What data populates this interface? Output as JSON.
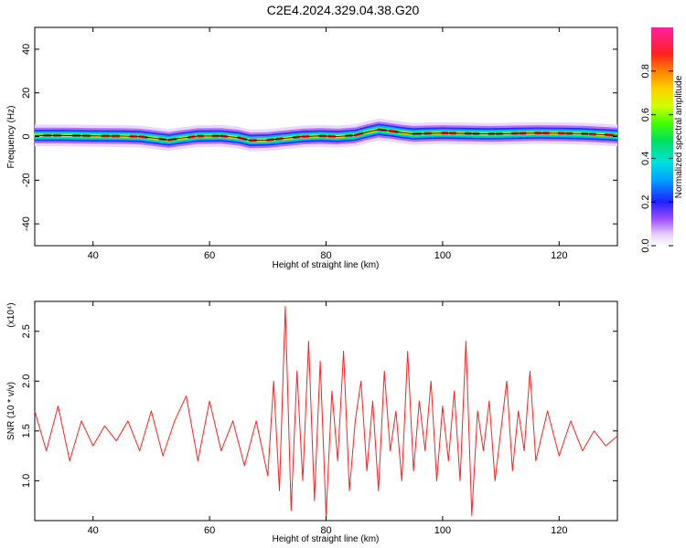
{
  "title": "C2E4.2024.329.04.38.G20",
  "chart_data": [
    {
      "type": "heatmap",
      "xlabel": "Height of straight line (km)",
      "ylabel": "Frequency (Hz)",
      "xlim": [
        30,
        130
      ],
      "ylim": [
        -50,
        50
      ],
      "xticks": [
        "40",
        "60",
        "80",
        "100",
        "120"
      ],
      "yticks": [
        "-40",
        "-20",
        "0",
        "20",
        "40"
      ],
      "colorbar": {
        "label": "Normalized spectral amplitude",
        "range": [
          0,
          1
        ],
        "ticks": [
          "0.0",
          "0.2",
          "0.4",
          "0.6",
          "0.8"
        ]
      },
      "ridge": {
        "x": [
          30,
          35,
          40,
          45,
          48,
          50,
          53,
          55,
          58,
          62,
          65,
          67,
          70,
          73,
          76,
          79,
          82,
          85,
          87,
          89,
          91,
          93,
          95,
          97,
          100,
          104,
          108,
          112,
          116,
          120,
          124,
          128,
          130
        ],
        "freq": [
          0.5,
          0.5,
          0.3,
          0.2,
          0.0,
          -0.6,
          -1.6,
          -0.8,
          0.2,
          0.3,
          -0.5,
          -1.8,
          -1.6,
          -0.8,
          0.0,
          0.3,
          0.0,
          0.6,
          2.0,
          3.2,
          2.6,
          1.8,
          1.2,
          1.4,
          1.6,
          1.4,
          1.2,
          1.4,
          1.6,
          1.5,
          1.3,
          0.8,
          0.5
        ]
      }
    },
    {
      "type": "line",
      "xlabel": "Height of straight line (km)",
      "ylabel": "SNR (10 * v/v)",
      "y_multiplier": "(x10⁴)",
      "xlim": [
        30,
        130
      ],
      "ylim": [
        0.6,
        2.8
      ],
      "xticks": [
        "40",
        "60",
        "80",
        "100",
        "120"
      ],
      "yticks": [
        "1.0",
        "1.5",
        "2.0",
        "2.5"
      ],
      "series": [
        {
          "color": "#ff2020",
          "x": [
            30,
            32,
            34,
            36,
            38,
            40,
            42,
            44,
            46,
            48,
            50,
            52,
            54,
            56,
            58,
            60,
            62,
            64,
            66,
            68,
            70,
            71,
            72,
            73,
            74,
            75,
            76,
            77,
            78,
            79,
            80,
            81,
            82,
            83,
            84,
            85,
            86,
            87,
            88,
            89,
            90,
            91,
            92,
            93,
            94,
            95,
            96,
            97,
            98,
            99,
            100,
            101,
            102,
            103,
            104,
            105,
            106,
            107,
            108,
            109,
            110,
            111,
            112,
            113,
            114,
            115,
            116,
            118,
            120,
            122,
            124,
            126,
            128,
            130
          ],
          "y": [
            1.7,
            1.3,
            1.75,
            1.2,
            1.6,
            1.35,
            1.55,
            1.4,
            1.6,
            1.3,
            1.7,
            1.25,
            1.6,
            1.85,
            1.2,
            1.8,
            1.3,
            1.6,
            1.15,
            1.6,
            1.05,
            2.0,
            0.9,
            2.75,
            0.7,
            2.1,
            1.0,
            2.4,
            0.8,
            2.2,
            0.65,
            1.9,
            1.2,
            2.3,
            0.9,
            1.6,
            2.0,
            1.1,
            1.8,
            0.9,
            2.1,
            1.3,
            1.7,
            1.0,
            2.3,
            1.1,
            1.8,
            1.3,
            2.0,
            1.0,
            1.75,
            1.2,
            1.9,
            1.0,
            2.4,
            0.65,
            1.7,
            1.3,
            1.8,
            1.0,
            1.5,
            2.0,
            1.1,
            1.7,
            1.3,
            2.1,
            1.2,
            1.7,
            1.25,
            1.6,
            1.3,
            1.5,
            1.35,
            1.45
          ]
        }
      ]
    }
  ]
}
